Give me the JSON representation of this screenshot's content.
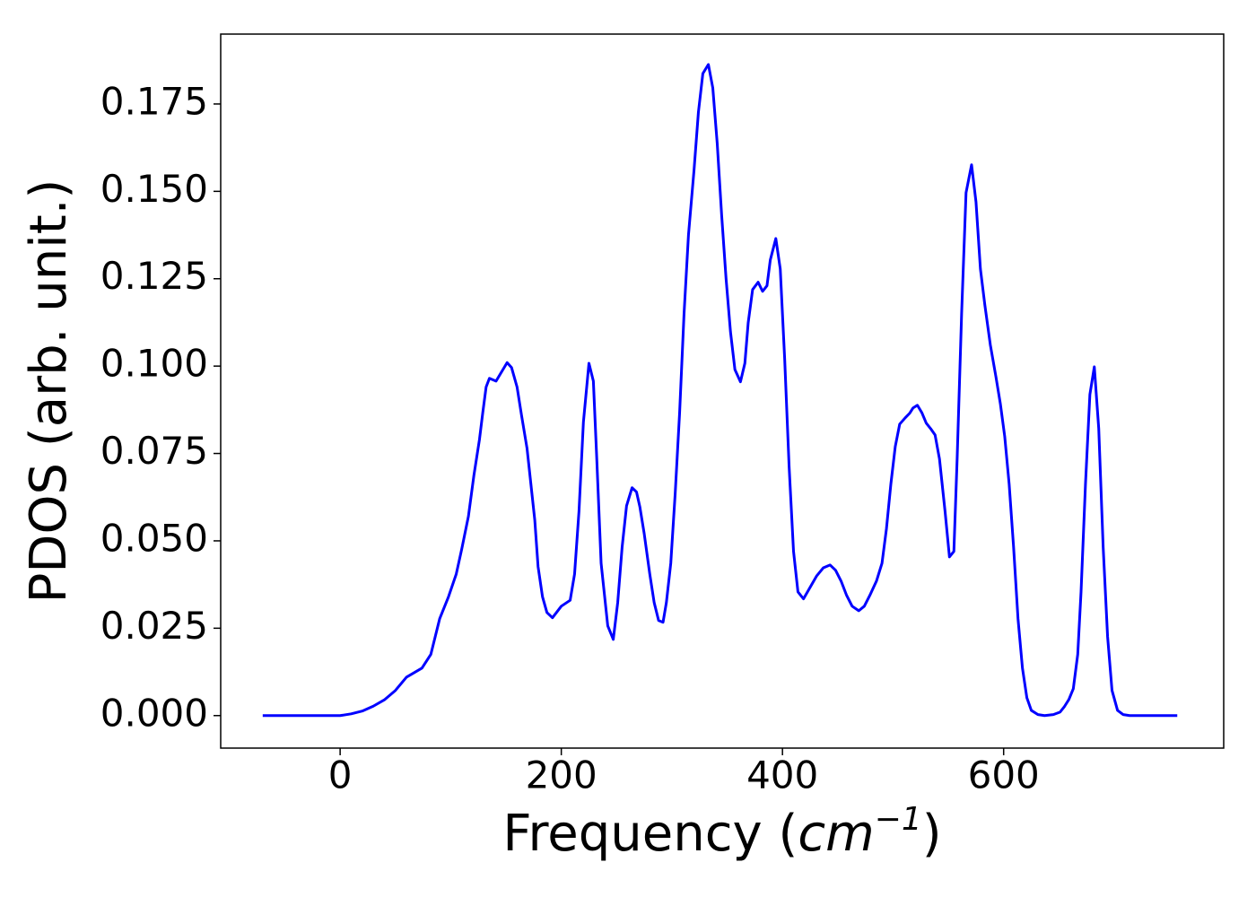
{
  "chart_data": {
    "type": "line",
    "xlabel": [
      "Frequency (",
      "cm",
      "−1",
      ")"
    ],
    "ylabel": "PDOS (arb. unit.)",
    "xlim": [
      -108,
      799
    ],
    "ylim": [
      -0.0093,
      0.195
    ],
    "xticks": [
      0,
      200,
      400,
      600
    ],
    "yticks": [
      {
        "value": 0,
        "label": "0.000"
      },
      {
        "value": 0.025,
        "label": "0.025"
      },
      {
        "value": 0.05,
        "label": "0.050"
      },
      {
        "value": 0.075,
        "label": "0.075"
      },
      {
        "value": 0.1,
        "label": "0.100"
      },
      {
        "value": 0.125,
        "label": "0.125"
      },
      {
        "value": 0.15,
        "label": "0.150"
      },
      {
        "value": 0.175,
        "label": "0.175"
      }
    ],
    "series": [
      {
        "color": "#0000ff",
        "x": [
          -70,
          -30,
          0,
          10,
          20,
          30,
          40,
          50,
          60,
          74,
          82,
          90,
          98,
          105,
          110,
          116,
          121,
          126,
          129,
          132,
          135,
          141,
          151,
          155,
          160,
          164,
          169,
          176,
          179,
          183,
          187,
          192,
          200,
          208,
          212,
          216,
          220,
          225,
          229,
          232,
          236,
          242,
          247,
          251,
          255,
          259,
          264,
          268,
          271,
          275,
          280,
          284,
          288,
          292,
          295,
          299,
          303,
          307,
          311,
          315,
          320,
          324,
          328,
          333,
          337,
          341,
          345,
          349,
          353,
          357,
          362,
          366,
          369,
          373,
          378,
          382,
          386,
          389,
          394,
          398,
          402,
          406,
          410,
          414,
          419,
          425,
          431,
          437,
          443,
          448,
          453,
          458,
          463,
          469,
          474,
          479,
          485,
          490,
          494,
          498,
          502,
          506,
          511,
          515,
          518,
          522,
          526,
          530,
          534,
          538,
          542,
          547,
          551,
          555,
          558,
          562,
          566,
          571,
          575,
          579,
          583,
          588,
          593,
          597,
          601,
          605,
          609,
          613,
          617,
          621,
          625,
          631,
          637,
          645,
          651,
          655,
          659,
          663,
          667,
          670,
          674,
          678,
          682,
          686,
          690,
          694,
          698,
          703,
          708,
          714,
          757
        ],
        "values": [
          0,
          0,
          0,
          0.0005,
          0.0013,
          0.0027,
          0.0045,
          0.0072,
          0.011,
          0.0136,
          0.0175,
          0.0277,
          0.034,
          0.0405,
          0.0477,
          0.057,
          0.0688,
          0.079,
          0.0867,
          0.094,
          0.0965,
          0.0957,
          0.101,
          0.0996,
          0.094,
          0.086,
          0.0765,
          0.056,
          0.0426,
          0.034,
          0.0295,
          0.028,
          0.0313,
          0.033,
          0.0405,
          0.0585,
          0.084,
          0.1008,
          0.0957,
          0.074,
          0.0436,
          0.0257,
          0.0218,
          0.0323,
          0.0482,
          0.06,
          0.0652,
          0.064,
          0.0598,
          0.052,
          0.0405,
          0.0323,
          0.0272,
          0.0267,
          0.0323,
          0.0436,
          0.0636,
          0.0867,
          0.115,
          0.1375,
          0.156,
          0.1727,
          0.1837,
          0.1863,
          0.1796,
          0.1637,
          0.1432,
          0.125,
          0.1098,
          0.099,
          0.0955,
          0.1008,
          0.1124,
          0.1219,
          0.124,
          0.1214,
          0.123,
          0.1304,
          0.1365,
          0.1278,
          0.102,
          0.0713,
          0.047,
          0.0354,
          0.0334,
          0.0367,
          0.04,
          0.0423,
          0.0431,
          0.0416,
          0.0385,
          0.0344,
          0.0313,
          0.03,
          0.0313,
          0.0344,
          0.0385,
          0.0436,
          0.0534,
          0.0662,
          0.077,
          0.0834,
          0.0852,
          0.0865,
          0.088,
          0.0888,
          0.0867,
          0.0837,
          0.0821,
          0.0803,
          0.0734,
          0.0585,
          0.0454,
          0.047,
          0.0739,
          0.115,
          0.1496,
          0.1576,
          0.147,
          0.1278,
          0.1175,
          0.106,
          0.097,
          0.0893,
          0.0798,
          0.0662,
          0.0482,
          0.0277,
          0.0136,
          0.0051,
          0.0015,
          0.0003,
          0,
          0.0003,
          0.001,
          0.0026,
          0.0046,
          0.0077,
          0.0175,
          0.0354,
          0.0662,
          0.0919,
          0.0998,
          0.0821,
          0.0482,
          0.0226,
          0.0072,
          0.0015,
          0.0003,
          0,
          0
        ]
      }
    ]
  }
}
